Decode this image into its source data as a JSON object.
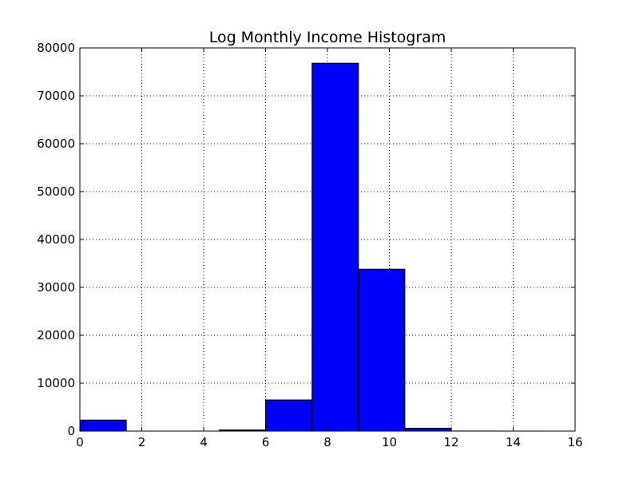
{
  "chart_data": {
    "type": "bar",
    "title": "Log Monthly Income Histogram",
    "xlabel": "",
    "ylabel": "",
    "xlim": [
      0,
      16
    ],
    "ylim": [
      0,
      80000
    ],
    "x_ticks": [
      0,
      2,
      4,
      6,
      8,
      10,
      12,
      14,
      16
    ],
    "y_ticks": [
      0,
      10000,
      20000,
      30000,
      40000,
      50000,
      60000,
      70000,
      80000
    ],
    "grid": true,
    "bar_color": "#0000ff",
    "bins": [
      {
        "start": 0.0,
        "end": 1.5,
        "count": 2300
      },
      {
        "start": 1.5,
        "end": 3.0,
        "count": 0
      },
      {
        "start": 3.0,
        "end": 4.5,
        "count": 0
      },
      {
        "start": 4.5,
        "end": 6.0,
        "count": 250
      },
      {
        "start": 6.0,
        "end": 7.5,
        "count": 6500
      },
      {
        "start": 7.5,
        "end": 9.0,
        "count": 76800
      },
      {
        "start": 9.0,
        "end": 10.5,
        "count": 33800
      },
      {
        "start": 10.5,
        "end": 12.0,
        "count": 600
      },
      {
        "start": 12.0,
        "end": 13.5,
        "count": 15
      },
      {
        "start": 13.5,
        "end": 15.0,
        "count": 5
      }
    ]
  }
}
